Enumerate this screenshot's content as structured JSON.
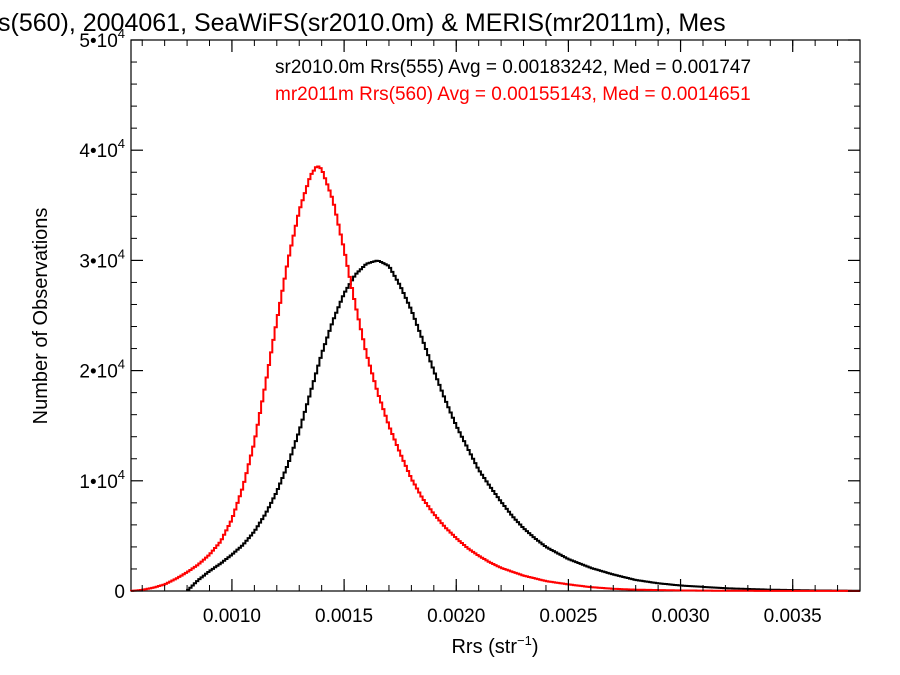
{
  "chart_data": {
    "type": "histogram",
    "title": "s(560), 2004061, SeaWiFS(sr2010.0m) & MERIS(mr2011m), Mes",
    "xlabel_main": "Rrs (str",
    "xlabel_sup": "−1",
    "xlabel_end": ")",
    "ylabel": "Number of Observations",
    "xlim": [
      0.00055,
      0.0038
    ],
    "ylim": [
      0,
      50000
    ],
    "x_ticks": [
      {
        "value": 0.001,
        "label": "0.0010"
      },
      {
        "value": 0.0015,
        "label": "0.0015"
      },
      {
        "value": 0.002,
        "label": "0.0020"
      },
      {
        "value": 0.0025,
        "label": "0.0025"
      },
      {
        "value": 0.003,
        "label": "0.0030"
      },
      {
        "value": 0.0035,
        "label": "0.0035"
      }
    ],
    "y_ticks": [
      {
        "value": 0,
        "mantissa": "0",
        "exp": ""
      },
      {
        "value": 10000,
        "mantissa": "1•10",
        "exp": "4"
      },
      {
        "value": 20000,
        "mantissa": "2•10",
        "exp": "4"
      },
      {
        "value": 30000,
        "mantissa": "3•10",
        "exp": "4"
      },
      {
        "value": 40000,
        "mantissa": "4•10",
        "exp": "4"
      },
      {
        "value": 50000,
        "mantissa": "5•10",
        "exp": "4"
      }
    ],
    "bin_width": 1e-05,
    "series": [
      {
        "name": "sr2010.0m Rrs(555) Avg = 0.00183242, Med = 0.001747",
        "color": "#000000",
        "points": [
          [
            0.0008,
            0
          ],
          [
            0.00085,
            1000
          ],
          [
            0.0009,
            1800
          ],
          [
            0.00095,
            2500
          ],
          [
            0.001,
            3300
          ],
          [
            0.00105,
            4200
          ],
          [
            0.0011,
            5400
          ],
          [
            0.00115,
            7000
          ],
          [
            0.0012,
            9000
          ],
          [
            0.00125,
            11500
          ],
          [
            0.0013,
            14500
          ],
          [
            0.00135,
            18000
          ],
          [
            0.0014,
            21500
          ],
          [
            0.00145,
            24500
          ],
          [
            0.0015,
            27000
          ],
          [
            0.00155,
            28700
          ],
          [
            0.0016,
            29700
          ],
          [
            0.00165,
            30000
          ],
          [
            0.0017,
            29500
          ],
          [
            0.00175,
            27700
          ],
          [
            0.0018,
            25500
          ],
          [
            0.00185,
            22800
          ],
          [
            0.0019,
            20000
          ],
          [
            0.00195,
            17400
          ],
          [
            0.002,
            15000
          ],
          [
            0.00205,
            13000
          ],
          [
            0.0021,
            11000
          ],
          [
            0.00215,
            9500
          ],
          [
            0.0022,
            8100
          ],
          [
            0.00225,
            6800
          ],
          [
            0.0023,
            5700
          ],
          [
            0.00235,
            4800
          ],
          [
            0.0024,
            4000
          ],
          [
            0.0025,
            2900
          ],
          [
            0.0026,
            2100
          ],
          [
            0.0027,
            1500
          ],
          [
            0.0028,
            1000
          ],
          [
            0.0029,
            700
          ],
          [
            0.003,
            500
          ],
          [
            0.0032,
            250
          ],
          [
            0.0034,
            120
          ],
          [
            0.0036,
            50
          ],
          [
            0.0038,
            20
          ]
        ]
      },
      {
        "name": "mr2011m Rrs(560) Avg = 0.00155143, Med = 0.0014651",
        "color": "#ff0000",
        "points": [
          [
            0.00055,
            0
          ],
          [
            0.0006,
            100
          ],
          [
            0.00065,
            300
          ],
          [
            0.0007,
            600
          ],
          [
            0.00075,
            1100
          ],
          [
            0.0008,
            1700
          ],
          [
            0.00085,
            2400
          ],
          [
            0.0009,
            3300
          ],
          [
            0.00095,
            4500
          ],
          [
            0.001,
            6500
          ],
          [
            0.00105,
            9500
          ],
          [
            0.0011,
            13500
          ],
          [
            0.00115,
            18800
          ],
          [
            0.0012,
            24500
          ],
          [
            0.00125,
            30000
          ],
          [
            0.0013,
            34500
          ],
          [
            0.00135,
            37700
          ],
          [
            0.00138,
            38600
          ],
          [
            0.0014,
            38300
          ],
          [
            0.00145,
            35500
          ],
          [
            0.0015,
            31000
          ],
          [
            0.00155,
            26000
          ],
          [
            0.0016,
            21500
          ],
          [
            0.00165,
            18000
          ],
          [
            0.0017,
            15000
          ],
          [
            0.00175,
            12500
          ],
          [
            0.0018,
            10200
          ],
          [
            0.00185,
            8400
          ],
          [
            0.0019,
            7000
          ],
          [
            0.00195,
            5800
          ],
          [
            0.002,
            4800
          ],
          [
            0.00205,
            3900
          ],
          [
            0.0021,
            3200
          ],
          [
            0.00215,
            2600
          ],
          [
            0.0022,
            2100
          ],
          [
            0.0023,
            1400
          ],
          [
            0.0024,
            900
          ],
          [
            0.0025,
            600
          ],
          [
            0.0026,
            350
          ],
          [
            0.0027,
            200
          ],
          [
            0.0028,
            120
          ],
          [
            0.003,
            50
          ],
          [
            0.0032,
            20
          ],
          [
            0.0038,
            5
          ]
        ]
      }
    ]
  }
}
